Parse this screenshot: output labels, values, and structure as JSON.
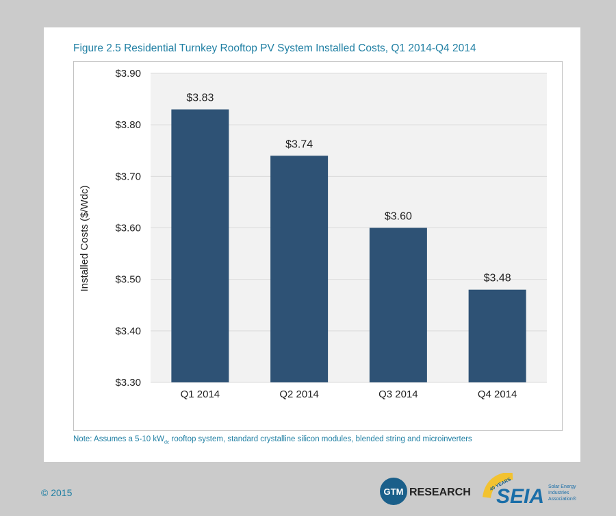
{
  "figure": {
    "title": "Figure 2.5  Residential Turnkey Rooftop PV System Installed Costs, Q1 2014-Q4 2014",
    "note_prefix": "Note: Assumes a 5-10 kW",
    "note_sub": "dc",
    "note_suffix": " rooftop system, standard crystalline silicon modules, blended string and microinverters"
  },
  "footer": {
    "copyright": "© 2015",
    "gtm_logo_text": "GTM",
    "gtm_research_text": "RESEARCH",
    "seia_logo_text": "SEIA",
    "seia_badge_text": "40 YEARS",
    "seia_tagline": [
      "Solar Energy",
      "Industries",
      "Association®"
    ]
  },
  "colors": {
    "bar": "#2e5275",
    "plot_bg": "#f2f2f2",
    "title": "#1f7fa3"
  },
  "chart_data": {
    "type": "bar",
    "categories": [
      "Q1 2014",
      "Q2 2014",
      "Q3 2014",
      "Q4 2014"
    ],
    "values": [
      3.83,
      3.74,
      3.6,
      3.48
    ],
    "value_labels": [
      "$3.83",
      "$3.74",
      "$3.60",
      "$3.48"
    ],
    "ylabel": "Installed Costs ($/Wdc)",
    "ylim": [
      3.3,
      3.9
    ],
    "yticks": [
      3.9,
      3.8,
      3.7,
      3.6,
      3.5,
      3.4,
      3.3
    ],
    "ytick_labels": [
      "$3.90",
      "$3.80",
      "$3.70",
      "$3.60",
      "$3.50",
      "$3.40",
      "$3.30"
    ],
    "grid": true
  }
}
